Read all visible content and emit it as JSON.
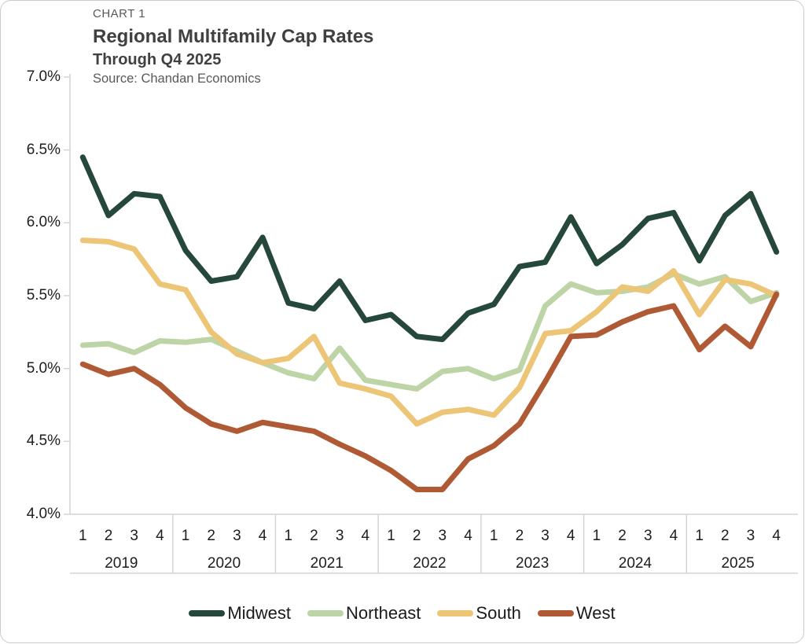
{
  "header": {
    "chart_label": "CHART 1",
    "title": "Regional Multifamily Cap Rates",
    "subtitle": "Through Q4 2025",
    "source": "Source: Chandan Economics"
  },
  "chart_data": {
    "type": "line",
    "title": "Regional Multifamily Cap Rates",
    "subtitle": "Through Q4 2025",
    "source": "Source: Chandan Economics",
    "legend_position": "bottom",
    "grid": "year-separator-columns-only",
    "y_axis": {
      "unit": "%",
      "min": 4.0,
      "max": 7.0,
      "step": 0.5,
      "tick_labels": [
        "7.0%",
        "6.5%",
        "6.0%",
        "5.5%",
        "5.0%",
        "4.5%",
        "4.0%"
      ]
    },
    "x_axis": {
      "years": [
        "2019",
        "2020",
        "2021",
        "2022",
        "2023",
        "2024",
        "2025"
      ],
      "quarter_labels": [
        "1",
        "2",
        "3",
        "4"
      ]
    },
    "series": [
      {
        "name": "Midwest",
        "color": "#26483a",
        "values": [
          6.45,
          6.05,
          6.2,
          6.18,
          5.81,
          5.6,
          5.63,
          5.9,
          5.45,
          5.41,
          5.6,
          5.33,
          5.37,
          5.22,
          5.2,
          5.38,
          5.44,
          5.7,
          5.73,
          6.04,
          5.72,
          5.85,
          6.03,
          6.07,
          5.74,
          6.05,
          6.2,
          5.8
        ]
      },
      {
        "name": "Northeast",
        "color": "#bdd5a6",
        "values": [
          5.16,
          5.17,
          5.11,
          5.19,
          5.18,
          5.2,
          5.12,
          5.04,
          4.97,
          4.93,
          5.14,
          4.92,
          4.89,
          4.86,
          4.98,
          5.0,
          4.93,
          4.99,
          5.43,
          5.58,
          5.52,
          5.53,
          5.56,
          5.65,
          5.58,
          5.63,
          5.46,
          5.52
        ]
      },
      {
        "name": "South",
        "color": "#ecc577",
        "values": [
          5.88,
          5.87,
          5.82,
          5.58,
          5.54,
          5.25,
          5.1,
          5.04,
          5.07,
          5.22,
          4.9,
          4.86,
          4.81,
          4.62,
          4.7,
          4.72,
          4.68,
          4.87,
          5.24,
          5.26,
          5.39,
          5.56,
          5.53,
          5.67,
          5.37,
          5.61,
          5.58,
          5.5
        ]
      },
      {
        "name": "West",
        "color": "#b05a35",
        "values": [
          5.03,
          4.96,
          5.0,
          4.89,
          4.73,
          4.62,
          4.57,
          4.63,
          4.6,
          4.57,
          4.48,
          4.4,
          4.3,
          4.17,
          4.17,
          4.38,
          4.47,
          4.62,
          4.91,
          5.22,
          5.23,
          5.32,
          5.39,
          5.43,
          5.13,
          5.29,
          5.15,
          5.51
        ]
      }
    ]
  }
}
